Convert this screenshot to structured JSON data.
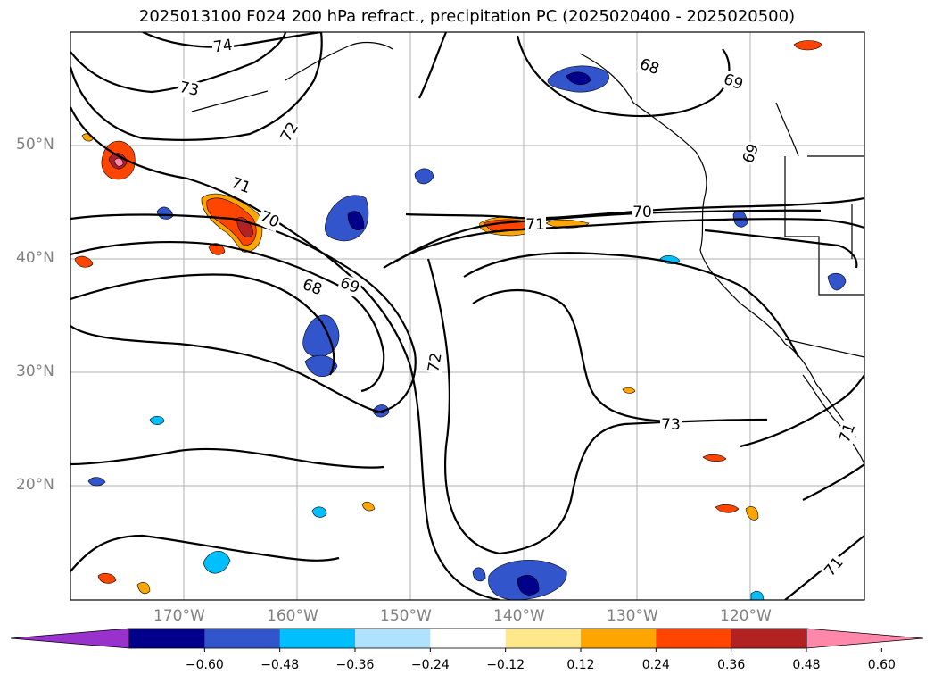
{
  "title": "2025013100 F024 200 hPa refract., precipitation PC (2025020400 - 2025020500)",
  "lat_labels": [
    "50°N",
    "40°N",
    "30°N",
    "20°N"
  ],
  "lon_labels": [
    "170°W",
    "160°W",
    "150°W",
    "140°W",
    "130°W",
    "120°W"
  ],
  "contour_labels": [
    "74",
    "73",
    "72",
    "71",
    "70",
    "69",
    "68",
    "68",
    "69",
    "71",
    "70",
    "69",
    "72",
    "73",
    "71",
    "71"
  ],
  "colorbar": {
    "ticks": [
      "−0.60",
      "−0.48",
      "−0.36",
      "−0.24",
      "−0.12",
      "0.12",
      "0.24",
      "0.36",
      "0.48",
      "0.60"
    ],
    "colors": [
      "#9932cc",
      "#00008b",
      "#3355cc",
      "#00bfff",
      "#b0e2ff",
      "#ffffff",
      "#ffe88c",
      "#ffa500",
      "#ff4500",
      "#b22222",
      "#ff88aa"
    ]
  }
}
